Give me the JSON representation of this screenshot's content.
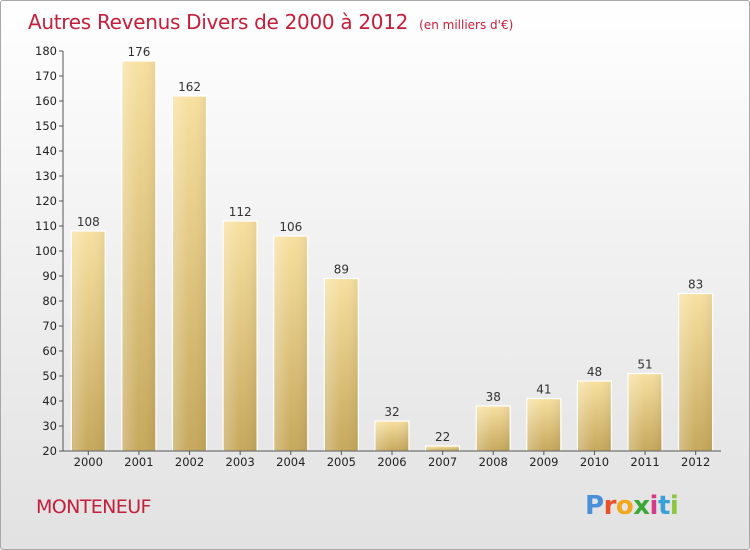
{
  "title": "Autres Revenus Divers de 2000 à 2012",
  "unit": "(en milliers d'€)",
  "commune": "MONTENEUF",
  "logo": {
    "letters": [
      "P",
      "r",
      "o",
      "x",
      "i",
      "t",
      "i"
    ],
    "colors": [
      "#4a90d9",
      "#e8502a",
      "#f2a81d",
      "#3aa935",
      "#d63a8a",
      "#3aa0d8",
      "#8cc63f"
    ]
  },
  "colors": {
    "title": "#c41e3a",
    "bar_top": "#f7e0a0",
    "bar_bottom": "#c6a85c"
  },
  "chart_data": {
    "type": "bar",
    "categories": [
      "2000",
      "2001",
      "2002",
      "2003",
      "2004",
      "2005",
      "2006",
      "2007",
      "2008",
      "2009",
      "2010",
      "2011",
      "2012"
    ],
    "values": [
      108,
      176,
      162,
      112,
      106,
      89,
      32,
      22,
      38,
      41,
      48,
      51,
      83
    ],
    "ylim": [
      20,
      180
    ],
    "yticks": [
      20,
      30,
      40,
      50,
      60,
      70,
      80,
      90,
      100,
      110,
      120,
      130,
      140,
      150,
      160,
      170,
      180
    ],
    "grid": false
  }
}
